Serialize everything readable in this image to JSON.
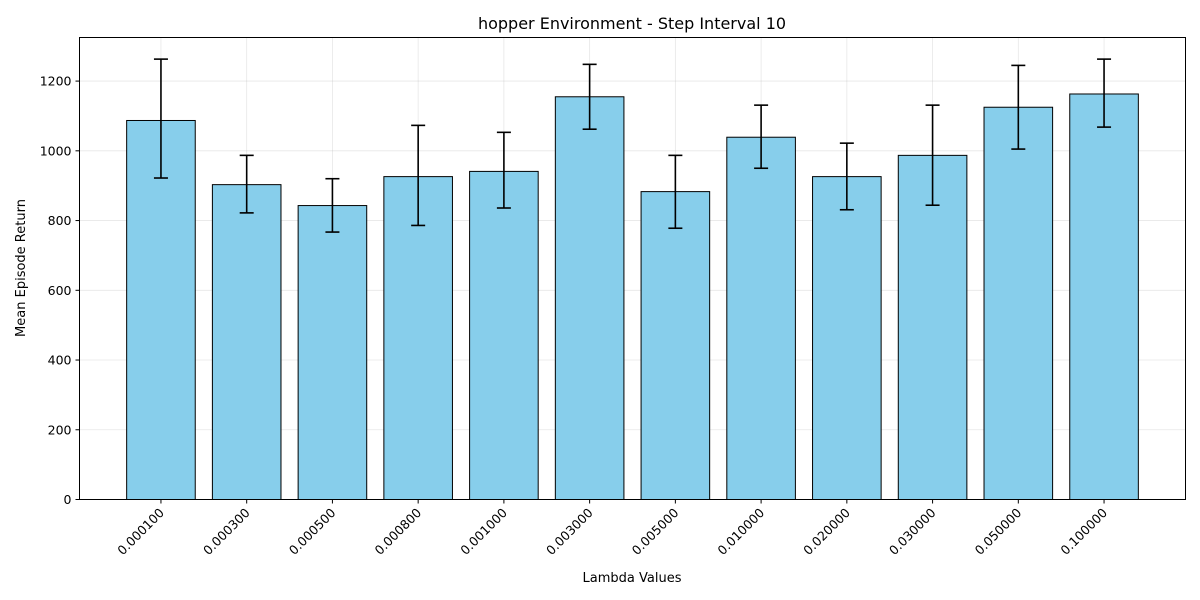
{
  "chart_data": {
    "type": "bar",
    "title": "hopper Environment - Step Interval 10",
    "xlabel": "Lambda Values",
    "ylabel": "Mean Episode Return",
    "categories": [
      "0.000100",
      "0.000300",
      "0.000500",
      "0.000800",
      "0.001000",
      "0.003000",
      "0.005000",
      "0.010000",
      "0.020000",
      "0.030000",
      "0.050000",
      "0.100000"
    ],
    "values": [
      1087,
      903,
      843,
      926,
      941,
      1155,
      883,
      1039,
      926,
      987,
      1125,
      1163
    ],
    "error_low": [
      922,
      822,
      767,
      786,
      836,
      1062,
      778,
      950,
      831,
      844,
      1005,
      1068
    ],
    "error_high": [
      1263,
      987,
      920,
      1073,
      1053,
      1248,
      987,
      1131,
      1022,
      1131,
      1245,
      1263
    ],
    "ylim": [
      0,
      1325
    ],
    "yticks": [
      0,
      200,
      400,
      600,
      800,
      1000,
      1200
    ],
    "grid": true,
    "bar_color": "#87ceeb",
    "edge_color": "#000000"
  }
}
